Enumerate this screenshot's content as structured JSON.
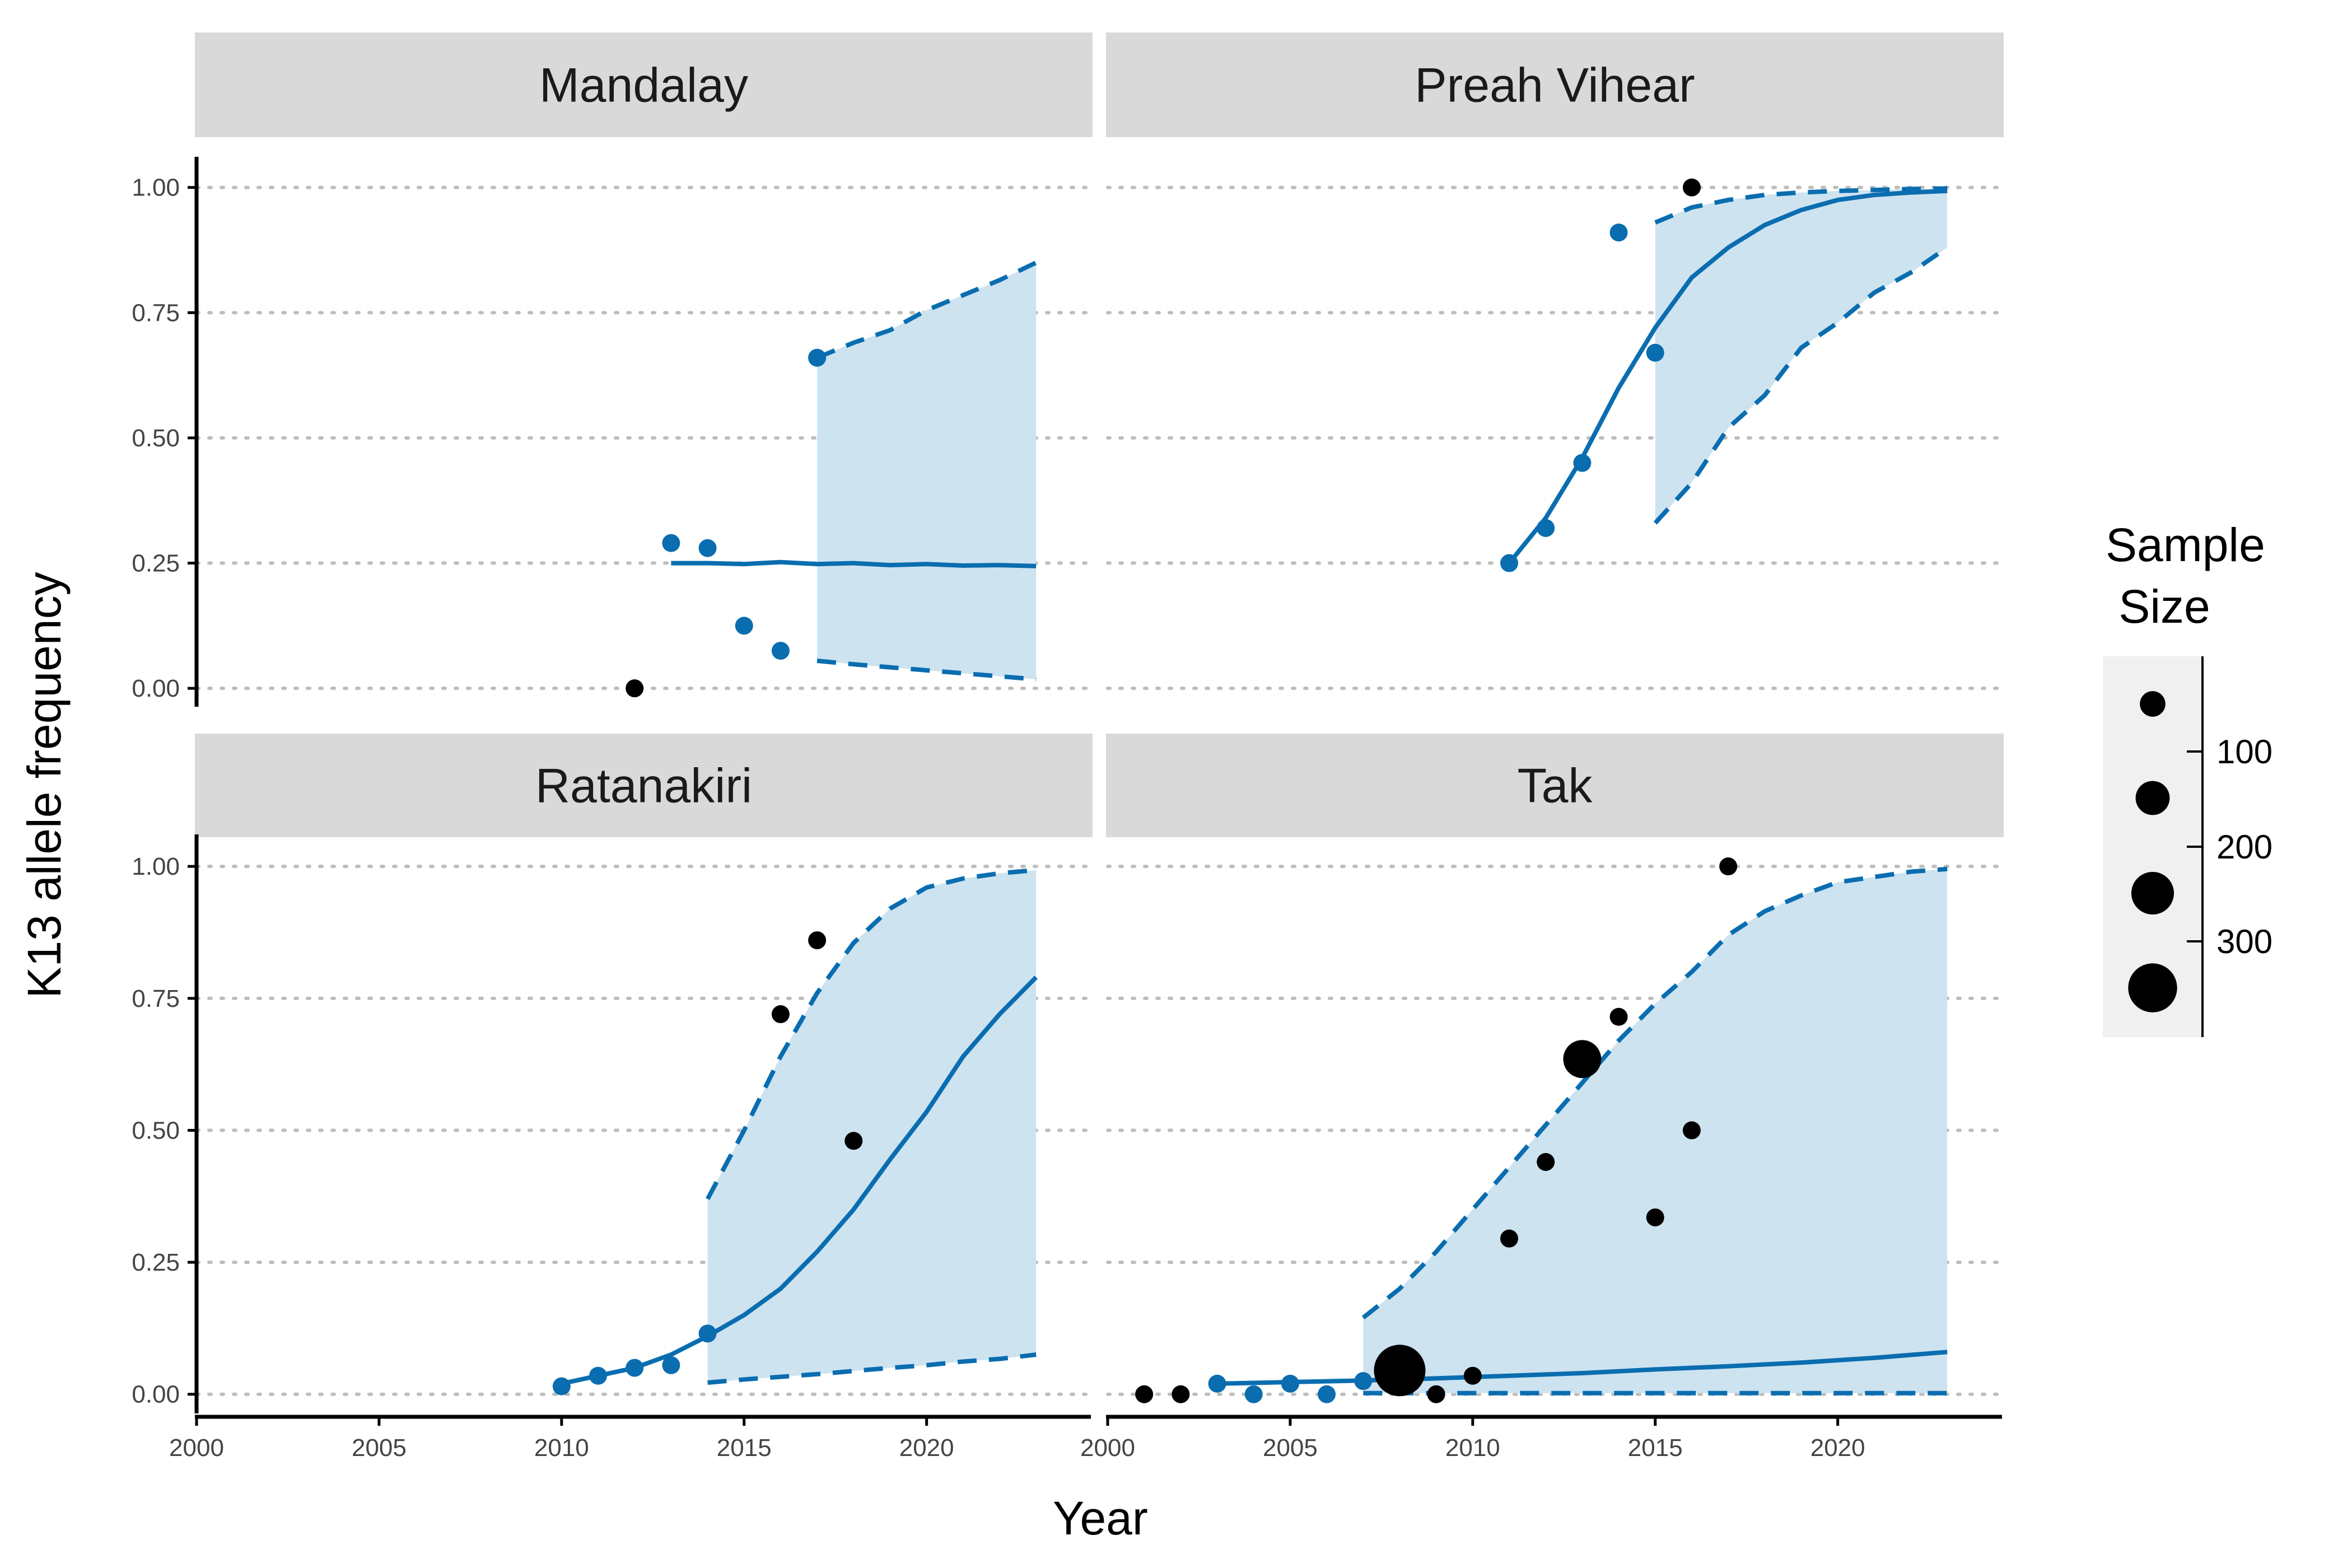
{
  "chart_data": {
    "type": "scatter",
    "title": "",
    "xlabel": "Year",
    "ylabel": "K13 allele frequency",
    "xlim": [
      2000,
      2024.5
    ],
    "ylim": [
      -0.03,
      1.05
    ],
    "x_ticks": [
      2000,
      2005,
      2010,
      2015,
      2020
    ],
    "x_tick_labels": [
      "2000",
      "2005",
      "2010",
      "2015",
      "2020"
    ],
    "y_ticks": [
      0,
      0.25,
      0.5,
      0.75,
      1.0
    ],
    "y_tick_labels": [
      "0.00",
      "0.25",
      "0.50",
      "0.75",
      "1.00"
    ],
    "grid": "horizontal dotted",
    "colors": {
      "model": "#0a6db0",
      "ribbon": "#cde3f0",
      "observed_black": "#000000",
      "observed_blue": "#0a6db0",
      "strip": "#d9d9d9",
      "gridline": "#bdbdbd"
    },
    "legend": {
      "title_line1": "Sample",
      "title_line2": " Size",
      "position": "right",
      "entries": [
        {
          "label": "",
          "size": 40
        },
        {
          "label": "100",
          "size": 100
        },
        {
          "label": "200",
          "size": 200
        },
        {
          "label": "300",
          "size": 300
        }
      ]
    },
    "panels": [
      {
        "name": "Mandalay",
        "row": 0,
        "col": 0,
        "points": [
          {
            "x": 2012,
            "y": 0.0,
            "n": 20,
            "color": "black"
          },
          {
            "x": 2013,
            "y": 0.29,
            "n": 20,
            "color": "blue"
          },
          {
            "x": 2014,
            "y": 0.28,
            "n": 20,
            "color": "blue"
          },
          {
            "x": 2015,
            "y": 0.125,
            "n": 20,
            "color": "blue"
          },
          {
            "x": 2016,
            "y": 0.075,
            "n": 20,
            "color": "blue"
          },
          {
            "x": 2017,
            "y": 0.66,
            "n": 20,
            "color": "blue"
          }
        ],
        "median": {
          "x": [
            2013,
            2014,
            2015,
            2016,
            2017,
            2018,
            2019,
            2020,
            2021,
            2022,
            2023
          ],
          "y": [
            0.25,
            0.25,
            0.248,
            0.252,
            0.248,
            0.25,
            0.246,
            0.248,
            0.245,
            0.246,
            0.244
          ]
        },
        "upper": {
          "x": [
            2017,
            2018,
            2019,
            2020,
            2021,
            2022,
            2023
          ],
          "y": [
            0.66,
            0.69,
            0.715,
            0.755,
            0.785,
            0.815,
            0.85
          ]
        },
        "lower": {
          "x": [
            2017,
            2018,
            2019,
            2020,
            2021,
            2022,
            2023
          ],
          "y": [
            0.055,
            0.048,
            0.042,
            0.036,
            0.03,
            0.024,
            0.018
          ]
        }
      },
      {
        "name": "Preah Vihear",
        "row": 0,
        "col": 1,
        "points": [
          {
            "x": 2011,
            "y": 0.25,
            "n": 20,
            "color": "blue"
          },
          {
            "x": 2012,
            "y": 0.32,
            "n": 20,
            "color": "blue"
          },
          {
            "x": 2013,
            "y": 0.45,
            "n": 20,
            "color": "blue"
          },
          {
            "x": 2014,
            "y": 0.91,
            "n": 20,
            "color": "blue"
          },
          {
            "x": 2015,
            "y": 0.67,
            "n": 20,
            "color": "blue"
          },
          {
            "x": 2016,
            "y": 1.0,
            "n": 20,
            "color": "black"
          }
        ],
        "median": {
          "x": [
            2011,
            2012,
            2013,
            2014,
            2015,
            2016,
            2017,
            2018,
            2019,
            2020,
            2021,
            2022,
            2023
          ],
          "y": [
            0.25,
            0.34,
            0.46,
            0.6,
            0.72,
            0.82,
            0.88,
            0.925,
            0.955,
            0.975,
            0.985,
            0.99,
            0.993
          ]
        },
        "upper": {
          "x": [
            2015,
            2016,
            2017,
            2018,
            2019,
            2020,
            2021,
            2022,
            2023
          ],
          "y": [
            0.93,
            0.96,
            0.975,
            0.985,
            0.99,
            0.993,
            0.995,
            0.997,
            0.998
          ]
        },
        "lower": {
          "x": [
            2015,
            2016,
            2017,
            2018,
            2019,
            2020,
            2021,
            2022,
            2023
          ],
          "y": [
            0.33,
            0.41,
            0.52,
            0.585,
            0.68,
            0.73,
            0.79,
            0.83,
            0.88
          ]
        }
      },
      {
        "name": "Ratanakiri",
        "row": 1,
        "col": 0,
        "points": [
          {
            "x": 2010,
            "y": 0.015,
            "n": 20,
            "color": "blue"
          },
          {
            "x": 2011,
            "y": 0.035,
            "n": 20,
            "color": "blue"
          },
          {
            "x": 2012,
            "y": 0.05,
            "n": 20,
            "color": "blue"
          },
          {
            "x": 2013,
            "y": 0.055,
            "n": 20,
            "color": "blue"
          },
          {
            "x": 2014,
            "y": 0.115,
            "n": 20,
            "color": "blue"
          },
          {
            "x": 2016,
            "y": 0.72,
            "n": 20,
            "color": "black"
          },
          {
            "x": 2017,
            "y": 0.86,
            "n": 20,
            "color": "black"
          },
          {
            "x": 2018,
            "y": 0.48,
            "n": 20,
            "color": "black"
          }
        ],
        "median": {
          "x": [
            2010,
            2011,
            2012,
            2013,
            2014,
            2015,
            2016,
            2017,
            2018,
            2019,
            2020,
            2021,
            2022,
            2023
          ],
          "y": [
            0.02,
            0.035,
            0.05,
            0.075,
            0.11,
            0.15,
            0.2,
            0.27,
            0.35,
            0.445,
            0.535,
            0.64,
            0.72,
            0.79
          ]
        },
        "upper": {
          "x": [
            2014,
            2015,
            2016,
            2017,
            2018,
            2019,
            2020,
            2021,
            2022,
            2023
          ],
          "y": [
            0.37,
            0.5,
            0.64,
            0.76,
            0.855,
            0.92,
            0.96,
            0.977,
            0.987,
            0.993
          ]
        },
        "lower": {
          "x": [
            2014,
            2015,
            2016,
            2017,
            2018,
            2019,
            2020,
            2021,
            2022,
            2023
          ],
          "y": [
            0.022,
            0.028,
            0.033,
            0.038,
            0.044,
            0.05,
            0.055,
            0.062,
            0.067,
            0.075
          ]
        }
      },
      {
        "name": "Tak",
        "row": 1,
        "col": 1,
        "points": [
          {
            "x": 2001,
            "y": 0.0,
            "n": 20,
            "color": "black"
          },
          {
            "x": 2002,
            "y": 0.0,
            "n": 20,
            "color": "black"
          },
          {
            "x": 2003,
            "y": 0.02,
            "n": 20,
            "color": "blue"
          },
          {
            "x": 2004,
            "y": 0.0,
            "n": 20,
            "color": "blue"
          },
          {
            "x": 2005,
            "y": 0.02,
            "n": 20,
            "color": "blue"
          },
          {
            "x": 2006,
            "y": 0.0,
            "n": 20,
            "color": "blue"
          },
          {
            "x": 2007,
            "y": 0.025,
            "n": 20,
            "color": "blue"
          },
          {
            "x": 2008,
            "y": 0.045,
            "n": 300,
            "color": "black"
          },
          {
            "x": 2009,
            "y": 0.0,
            "n": 20,
            "color": "black"
          },
          {
            "x": 2010,
            "y": 0.035,
            "n": 20,
            "color": "black"
          },
          {
            "x": 2011,
            "y": 0.295,
            "n": 20,
            "color": "black"
          },
          {
            "x": 2012,
            "y": 0.44,
            "n": 20,
            "color": "black"
          },
          {
            "x": 2013,
            "y": 0.635,
            "n": 120,
            "color": "black"
          },
          {
            "x": 2014,
            "y": 0.715,
            "n": 20,
            "color": "black"
          },
          {
            "x": 2015,
            "y": 0.335,
            "n": 20,
            "color": "black"
          },
          {
            "x": 2016,
            "y": 0.5,
            "n": 20,
            "color": "black"
          },
          {
            "x": 2017,
            "y": 1.0,
            "n": 20,
            "color": "black"
          }
        ],
        "median": {
          "x": [
            2003,
            2005,
            2007,
            2009,
            2011,
            2013,
            2015,
            2017,
            2019,
            2021,
            2023
          ],
          "y": [
            0.02,
            0.023,
            0.026,
            0.03,
            0.035,
            0.04,
            0.047,
            0.053,
            0.06,
            0.069,
            0.08
          ]
        },
        "upper": {
          "x": [
            2007,
            2008,
            2009,
            2010,
            2011,
            2012,
            2013,
            2014,
            2015,
            2016,
            2017,
            2018,
            2019,
            2020,
            2021,
            2022,
            2023
          ],
          "y": [
            0.145,
            0.2,
            0.27,
            0.35,
            0.43,
            0.51,
            0.59,
            0.67,
            0.74,
            0.8,
            0.87,
            0.915,
            0.945,
            0.97,
            0.98,
            0.99,
            0.995
          ]
        },
        "lower": {
          "x": [
            2007,
            2023
          ],
          "y": [
            0.002,
            0.002
          ]
        }
      }
    ]
  }
}
